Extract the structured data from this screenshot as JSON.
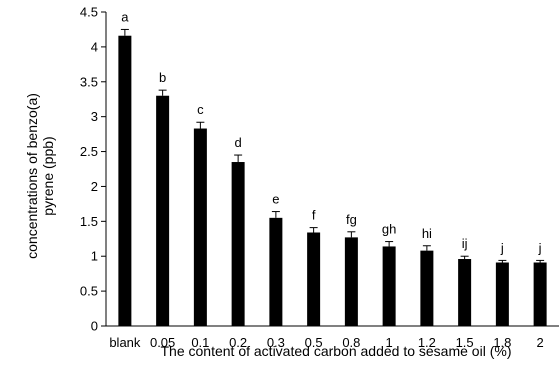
{
  "chart_data": {
    "type": "bar",
    "xlabel": "The content of activated carbon added to sesame oil (%)",
    "ylabel": [
      "concentrations of benzo(a)",
      "pyrene (ppb)"
    ],
    "categories": [
      "blank",
      "0.05",
      "0.1",
      "0.2",
      "0.3",
      "0.5",
      "0.8",
      "1",
      "1.2",
      "1.5",
      "1.8",
      "2"
    ],
    "values": [
      4.16,
      3.3,
      2.83,
      2.35,
      1.55,
      1.34,
      1.27,
      1.14,
      1.08,
      0.96,
      0.91,
      0.91
    ],
    "errors": [
      0.09,
      0.08,
      0.09,
      0.1,
      0.09,
      0.07,
      0.08,
      0.07,
      0.07,
      0.04,
      0.03,
      0.03
    ],
    "letters": [
      "a",
      "b",
      "c",
      "d",
      "e",
      "f",
      "fg",
      "gh",
      "hi",
      "ij",
      "j",
      "j"
    ],
    "ylim": [
      0,
      4.5
    ],
    "yticks": [
      "0",
      "0.5",
      "1",
      "1.5",
      "2",
      "2.5",
      "3",
      "3.5",
      "4",
      "4.5"
    ],
    "grid": false,
    "legend": "none",
    "bar_color": "#000000"
  }
}
